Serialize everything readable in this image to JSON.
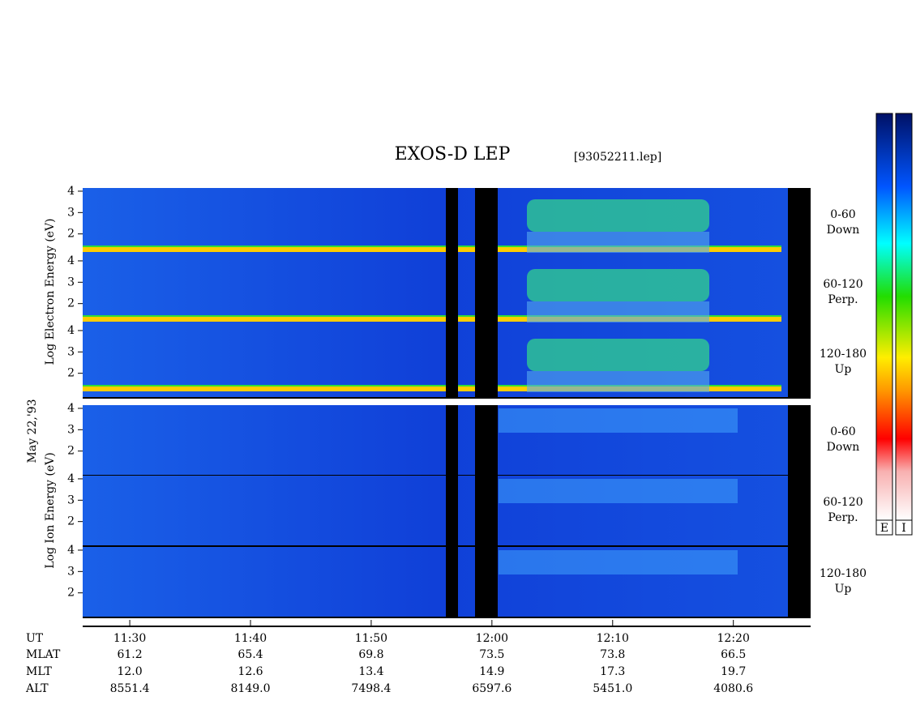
{
  "chart_data": {
    "type": "spectrogram",
    "title": "EXOS-D LEP",
    "file": "[93052211.lep]",
    "date": "May 22,'93",
    "electron_axis_label": "Log Electron Energy (eV)",
    "ion_axis_label": "Log Ion Energy (eV)",
    "panels": [
      {
        "group": "electron",
        "label": "0-60",
        "sublabel": "Down"
      },
      {
        "group": "electron",
        "label": "60-120",
        "sublabel": "Perp."
      },
      {
        "group": "electron",
        "label": "120-180",
        "sublabel": "Up"
      },
      {
        "group": "ion",
        "label": "0-60",
        "sublabel": "Down"
      },
      {
        "group": "ion",
        "label": "60-120",
        "sublabel": "Perp."
      },
      {
        "group": "ion",
        "label": "120-180",
        "sublabel": "Up"
      }
    ],
    "ylim": [
      0.85,
      4.15
    ],
    "yticks": [
      2,
      3,
      4
    ],
    "xlim": [
      686.1,
      746.4
    ],
    "xticks": [
      {
        "value": 690,
        "label": "11:30"
      },
      {
        "value": 700,
        "label": "11:40"
      },
      {
        "value": 710,
        "label": "11:50"
      },
      {
        "value": 720,
        "label": "12:00"
      },
      {
        "value": 730,
        "label": "12:10"
      },
      {
        "value": 740,
        "label": "12:20"
      }
    ],
    "ephemeris": {
      "labels": [
        "UT",
        "MLAT",
        "MLT",
        "ALT"
      ],
      "rows": [
        [
          "61.2",
          "65.4",
          "69.8",
          "73.5",
          "73.8",
          "66.5"
        ],
        [
          "12.0",
          "12.6",
          "13.4",
          "14.9",
          "17.3",
          "19.7"
        ],
        [
          "8551.4",
          "8149.0",
          "7498.4",
          "6597.6",
          "5451.0",
          "4080.6"
        ]
      ]
    },
    "colorbars": [
      "E",
      "I"
    ]
  }
}
